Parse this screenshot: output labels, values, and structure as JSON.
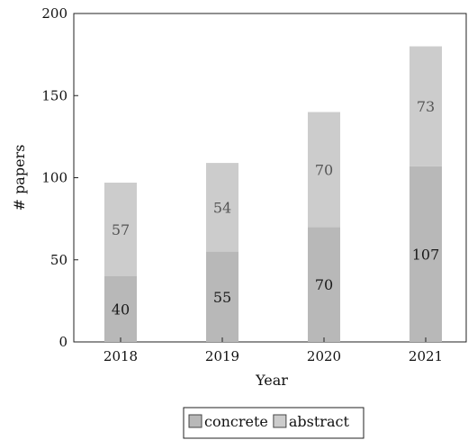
{
  "chart_data": {
    "type": "bar",
    "stacked": true,
    "categories": [
      "2018",
      "2019",
      "2020",
      "2021"
    ],
    "series": [
      {
        "name": "concrete",
        "values": [
          40,
          55,
          70,
          107
        ],
        "color": "#b8b8b8",
        "label_color": "#1a1a1a"
      },
      {
        "name": "abstract",
        "values": [
          57,
          54,
          70,
          73
        ],
        "color": "#cccccc",
        "label_color": "#555555"
      }
    ],
    "xlabel": "Year",
    "ylabel": "# papers",
    "ylim": [
      0,
      200
    ],
    "yticks": [
      0,
      50,
      100,
      150,
      200
    ],
    "grid": false,
    "legend_position": "bottom-center"
  }
}
